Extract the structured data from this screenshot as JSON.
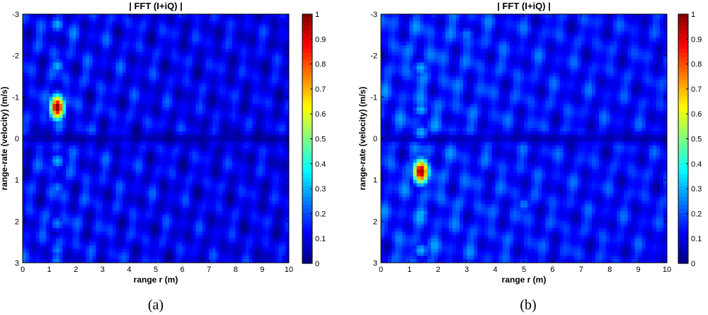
{
  "chart_data": [
    {
      "type": "heatmap",
      "panel_label": "a",
      "title": "| FFT (I+iQ) |",
      "xlabel": "range r (m)",
      "ylabel": "range-rate (velocity)   (m/s)",
      "xlim": [
        0,
        10
      ],
      "ylim": [
        3,
        -3
      ],
      "y_axis_inverted": true,
      "xticks": [
        0,
        1,
        2,
        3,
        4,
        5,
        6,
        7,
        8,
        9,
        10
      ],
      "yticks": [
        -3,
        -2,
        -1,
        0,
        1,
        2,
        3
      ],
      "colorbar": {
        "min": 0,
        "max": 1,
        "ticks": [
          0,
          0.1,
          0.2,
          0.3,
          0.4,
          0.5,
          0.6,
          0.7,
          0.8,
          0.9,
          1
        ],
        "colormap": "jet"
      },
      "peak": {
        "range_m": 1.3,
        "velocity_mps": -0.75,
        "magnitude": 1.0
      },
      "sidelobes": [
        {
          "range_m": 1.3,
          "velocity_mps": -2.75,
          "magnitude": 0.3
        },
        {
          "range_m": 1.3,
          "velocity_mps": -1.75,
          "magnitude": 0.3
        },
        {
          "range_m": 1.3,
          "velocity_mps": 0.55,
          "magnitude": 0.3
        },
        {
          "range_m": 1.3,
          "velocity_mps": 1.2,
          "magnitude": 0.25
        },
        {
          "range_m": 1.3,
          "velocity_mps": 2.05,
          "magnitude": 0.25
        },
        {
          "range_m": 1.3,
          "velocity_mps": 2.7,
          "magnitude": 0.25
        }
      ],
      "background_level": 0.12
    },
    {
      "type": "heatmap",
      "panel_label": "b",
      "title": "| FFT (I+iQ) |",
      "xlabel": "range r (m)",
      "ylabel": "range-rate (velocity)   (m/s)",
      "xlim": [
        0,
        10
      ],
      "ylim": [
        3,
        -3
      ],
      "y_axis_inverted": true,
      "xticks": [
        0,
        1,
        2,
        3,
        4,
        5,
        6,
        7,
        8,
        9,
        10
      ],
      "yticks": [
        -3,
        -2,
        -1,
        0,
        1,
        2,
        3
      ],
      "colorbar": {
        "min": 0,
        "max": 1,
        "ticks": [
          0,
          0.1,
          0.2,
          0.3,
          0.4,
          0.5,
          0.6,
          0.7,
          0.8,
          0.9,
          1
        ],
        "colormap": "jet"
      },
      "peak": {
        "range_m": 1.4,
        "velocity_mps": 0.8,
        "magnitude": 1.0
      },
      "sidelobes": [
        {
          "range_m": 1.4,
          "velocity_mps": -1.7,
          "magnitude": 0.3
        },
        {
          "range_m": 1.4,
          "velocity_mps": -0.7,
          "magnitude": 0.3
        },
        {
          "range_m": 1.4,
          "velocity_mps": -0.15,
          "magnitude": 0.3
        },
        {
          "range_m": 1.4,
          "velocity_mps": 1.8,
          "magnitude": 0.3
        },
        {
          "range_m": 1.4,
          "velocity_mps": 2.7,
          "magnitude": 0.3
        },
        {
          "range_m": 5.0,
          "velocity_mps": 1.6,
          "magnitude": 0.25
        },
        {
          "range_m": 3.0,
          "velocity_mps": -2.5,
          "magnitude": 0.25
        }
      ],
      "background_level": 0.15
    }
  ],
  "captions": [
    "(a)",
    "(b)"
  ]
}
